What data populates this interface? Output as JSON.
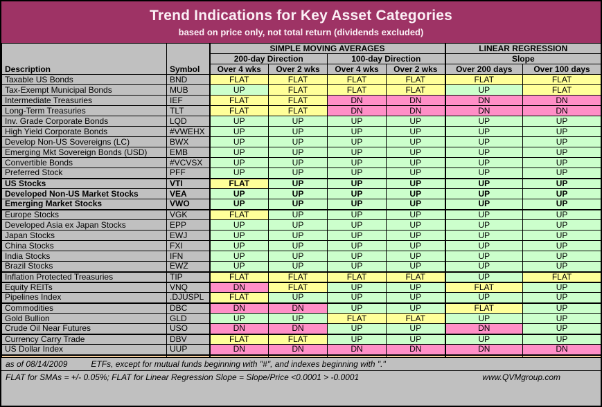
{
  "chart_data": {
    "type": "table",
    "title": "Trend Indications for Key Asset Categories",
    "subtitle": "based on price only, not total return (dividends excluded)",
    "group_headers": [
      "SIMPLE MOVING AVERAGES",
      "LINEAR REGRESSION"
    ],
    "sub_headers": [
      "200-day Direction",
      "100-day Direction",
      "Slope"
    ],
    "columns": [
      "Description",
      "Symbol",
      "Over 4 wks",
      "Over 2 wks",
      "Over 4 wks",
      "Over 2 wks",
      "Over 200 days",
      "Over 100 days"
    ],
    "value_colors": {
      "UP": "#CCFFCC",
      "FLAT": "#FFFF99",
      "DN": "#FF8FC7"
    },
    "rows": [
      {
        "description": "Taxable US Bonds",
        "symbol": "BND",
        "bold": false,
        "thick_bottom": false,
        "values": [
          "FLAT",
          "FLAT",
          "FLAT",
          "FLAT",
          "FLAT",
          "FLAT"
        ]
      },
      {
        "description": "Tax-Exempt Municipal Bonds",
        "symbol": "MUB",
        "bold": false,
        "thick_bottom": false,
        "values": [
          "UP",
          "FLAT",
          "FLAT",
          "FLAT",
          "UP",
          "FLAT"
        ]
      },
      {
        "description": "Intermediate Treasuries",
        "symbol": "IEF",
        "bold": false,
        "thick_bottom": false,
        "values": [
          "FLAT",
          "FLAT",
          "DN",
          "DN",
          "DN",
          "DN"
        ]
      },
      {
        "description": "Long-Term Treasuries",
        "symbol": "TLT",
        "bold": false,
        "thick_bottom": false,
        "values": [
          "FLAT",
          "FLAT",
          "DN",
          "DN",
          "DN",
          "DN"
        ]
      },
      {
        "description": "Inv. Grade Corporate Bonds",
        "symbol": "LQD",
        "bold": false,
        "thick_bottom": false,
        "values": [
          "UP",
          "UP",
          "UP",
          "UP",
          "UP",
          "UP"
        ]
      },
      {
        "description": "High Yield Corporate Bonds",
        "symbol": "#VWEHX",
        "bold": false,
        "thick_bottom": false,
        "values": [
          "UP",
          "UP",
          "UP",
          "UP",
          "UP",
          "UP"
        ]
      },
      {
        "description": "Develop Non-US Sovereigns (LC)",
        "symbol": "BWX",
        "bold": false,
        "thick_bottom": false,
        "values": [
          "UP",
          "UP",
          "UP",
          "UP",
          "UP",
          "UP"
        ]
      },
      {
        "description": "Emerging Mkt Sovereign Bonds (USD)",
        "symbol": "EMB",
        "bold": false,
        "thick_bottom": false,
        "values": [
          "UP",
          "UP",
          "UP",
          "UP",
          "UP",
          "UP"
        ]
      },
      {
        "description": "Convertible Bonds",
        "symbol": "#VCVSX",
        "bold": false,
        "thick_bottom": false,
        "values": [
          "UP",
          "UP",
          "UP",
          "UP",
          "UP",
          "UP"
        ]
      },
      {
        "description": "Preferred Stock",
        "symbol": "PFF",
        "bold": false,
        "thick_bottom": true,
        "values": [
          "UP",
          "UP",
          "UP",
          "UP",
          "UP",
          "UP"
        ]
      },
      {
        "description": "US Stocks",
        "symbol": "VTI",
        "bold": true,
        "thick_bottom": false,
        "values": [
          "FLAT",
          "UP",
          "UP",
          "UP",
          "UP",
          "UP"
        ]
      },
      {
        "description": "Developed Non-US Market Stocks",
        "symbol": "VEA",
        "bold": true,
        "thick_bottom": false,
        "values": [
          "UP",
          "UP",
          "UP",
          "UP",
          "UP",
          "UP"
        ]
      },
      {
        "description": "Emerging Market Stocks",
        "symbol": "VWO",
        "bold": true,
        "thick_bottom": true,
        "values": [
          "UP",
          "UP",
          "UP",
          "UP",
          "UP",
          "UP"
        ]
      },
      {
        "description": "Europe Stocks",
        "symbol": "VGK",
        "bold": false,
        "thick_bottom": false,
        "values": [
          "FLAT",
          "UP",
          "UP",
          "UP",
          "UP",
          "UP"
        ]
      },
      {
        "description": "Developed Asia ex Japan Stocks",
        "symbol": "EPP",
        "bold": false,
        "thick_bottom": false,
        "values": [
          "UP",
          "UP",
          "UP",
          "UP",
          "UP",
          "UP"
        ]
      },
      {
        "description": "Japan Stocks",
        "symbol": "EWJ",
        "bold": false,
        "thick_bottom": false,
        "values": [
          "UP",
          "UP",
          "UP",
          "UP",
          "UP",
          "UP"
        ]
      },
      {
        "description": "China Stocks",
        "symbol": "FXI",
        "bold": false,
        "thick_bottom": false,
        "values": [
          "UP",
          "UP",
          "UP",
          "UP",
          "UP",
          "UP"
        ]
      },
      {
        "description": "India Stocks",
        "symbol": "IFN",
        "bold": false,
        "thick_bottom": false,
        "values": [
          "UP",
          "UP",
          "UP",
          "UP",
          "UP",
          "UP"
        ]
      },
      {
        "description": "Brazil Stocks",
        "symbol": "EWZ",
        "bold": false,
        "thick_bottom": true,
        "values": [
          "UP",
          "UP",
          "UP",
          "UP",
          "UP",
          "UP"
        ]
      },
      {
        "description": "Inflation Protected Treasuries",
        "symbol": "TIP",
        "bold": false,
        "thick_bottom": true,
        "values": [
          "FLAT",
          "FLAT",
          "FLAT",
          "FLAT",
          "UP",
          "FLAT"
        ]
      },
      {
        "description": "Equity REITs",
        "symbol": "VNQ",
        "bold": false,
        "thick_bottom": false,
        "values": [
          "DN",
          "FLAT",
          "UP",
          "UP",
          "FLAT",
          "UP"
        ]
      },
      {
        "description": "Pipelines Index",
        "symbol": ".DJUSPL",
        "bold": false,
        "thick_bottom": true,
        "values": [
          "FLAT",
          "UP",
          "UP",
          "UP",
          "UP",
          "UP"
        ]
      },
      {
        "description": "Commodities",
        "symbol": "DBC",
        "bold": false,
        "thick_bottom": false,
        "values": [
          "DN",
          "DN",
          "UP",
          "UP",
          "FLAT",
          "UP"
        ]
      },
      {
        "description": "Gold Bullion",
        "symbol": "GLD",
        "bold": false,
        "thick_bottom": false,
        "values": [
          "UP",
          "UP",
          "FLAT",
          "FLAT",
          "UP",
          "UP"
        ]
      },
      {
        "description": "Crude Oil Near Futures",
        "symbol": "USO",
        "bold": false,
        "thick_bottom": true,
        "values": [
          "DN",
          "DN",
          "UP",
          "UP",
          "DN",
          "UP"
        ]
      },
      {
        "description": "Currency Carry Trade",
        "symbol": "DBV",
        "bold": false,
        "thick_bottom": false,
        "values": [
          "FLAT",
          "FLAT",
          "UP",
          "UP",
          "UP",
          "UP"
        ]
      },
      {
        "description": "US Dollar Index",
        "symbol": "UUP",
        "bold": false,
        "thick_bottom": true,
        "values": [
          "DN",
          "DN",
          "DN",
          "DN",
          "DN",
          "DN"
        ]
      }
    ]
  },
  "footer": {
    "as_of": "as of 08/14/2009",
    "note": "ETFs, except for mutual funds beginning with \"#\", and indexes beginning with \".\"",
    "flat_note": "FLAT for SMAs = +/- 0.05%; FLAT for Linear Regression Slope = Slope/Price <0.0001 > -0.0001",
    "website": "www.QVMgroup.com"
  },
  "colors": {
    "banner": "#9E3365",
    "header_bg": "#C0C0C0",
    "up": "#CCFFCC",
    "flat": "#FFFF99",
    "dn": "#FF8FC7",
    "spacer": "#F7CE9B"
  }
}
